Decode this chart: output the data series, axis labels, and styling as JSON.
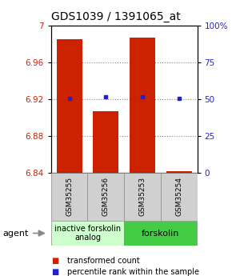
{
  "title": "GDS1039 / 1391065_at",
  "samples": [
    "GSM35255",
    "GSM35256",
    "GSM35253",
    "GSM35254"
  ],
  "bar_tops": [
    6.985,
    6.907,
    6.987,
    6.841
  ],
  "bar_bottom": 6.84,
  "blue_dots": [
    6.921,
    6.922,
    6.922,
    6.921
  ],
  "ylim_left": [
    6.84,
    7.0
  ],
  "ylim_right": [
    0,
    100
  ],
  "yticks_left": [
    6.84,
    6.88,
    6.92,
    6.96,
    7.0
  ],
  "ytick_labels_left": [
    "6.84",
    "6.88",
    "6.92",
    "6.96",
    "7"
  ],
  "yticks_right": [
    0,
    25,
    50,
    75,
    100
  ],
  "ytick_labels_right": [
    "0",
    "25",
    "50",
    "75",
    "100%"
  ],
  "bar_color": "#cc2200",
  "dot_color": "#2222cc",
  "bar_width": 0.7,
  "group1_label": "inactive forskolin\nanalog",
  "group2_label": "forskolin",
  "group1_color": "#ccffcc",
  "group2_color": "#44cc44",
  "sample_box_color": "#d0d0d0",
  "agent_label": "agent",
  "legend_red": "transformed count",
  "legend_blue": "percentile rank within the sample",
  "title_fontsize": 10,
  "tick_fontsize": 7.5,
  "sample_fontsize": 6.5,
  "group_fontsize": 7,
  "legend_fontsize": 7
}
